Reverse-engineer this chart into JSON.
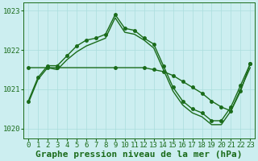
{
  "ylim": [
    1019.75,
    1023.2
  ],
  "xlim": [
    -0.5,
    23.5
  ],
  "yticks": [
    1020,
    1021,
    1022,
    1023
  ],
  "xticks": [
    0,
    1,
    2,
    3,
    4,
    5,
    6,
    7,
    8,
    9,
    10,
    11,
    12,
    13,
    14,
    15,
    16,
    17,
    18,
    19,
    20,
    21,
    22,
    23
  ],
  "bg_color": "#cceef0",
  "grid_color": "#aadddd",
  "line_color": "#1a6b1a",
  "series": [
    {
      "x": [
        0,
        1,
        2,
        3,
        4,
        5,
        6,
        7,
        8,
        9,
        10,
        11,
        12,
        13,
        14,
        15,
        16,
        17,
        18,
        19,
        20,
        21,
        22,
        23
      ],
      "y": [
        1020.7,
        1021.3,
        1021.6,
        1021.6,
        1021.85,
        1022.1,
        1022.25,
        1022.3,
        1022.4,
        1022.9,
        1022.55,
        1022.5,
        1022.3,
        1022.15,
        1021.6,
        1021.05,
        1020.7,
        1020.5,
        1020.4,
        1020.2,
        1020.2,
        1020.55,
        1021.1,
        1021.65
      ],
      "has_markers": true
    },
    {
      "x": [
        0,
        1,
        2,
        3,
        4,
        5,
        6,
        7,
        8,
        9,
        10,
        11,
        12,
        13,
        14,
        15,
        16,
        17,
        18,
        19,
        20,
        21,
        22,
        23
      ],
      "y": [
        1020.65,
        1021.25,
        1021.55,
        1021.5,
        1021.75,
        1021.95,
        1022.1,
        1022.2,
        1022.3,
        1022.82,
        1022.45,
        1022.4,
        1022.25,
        1022.05,
        1021.5,
        1020.95,
        1020.6,
        1020.4,
        1020.3,
        1020.1,
        1020.1,
        1020.45,
        1021.0,
        1021.55
      ],
      "has_markers": false
    },
    {
      "x": [
        0,
        2,
        3,
        9,
        12,
        13,
        14,
        15,
        16,
        17,
        18,
        19,
        20,
        21,
        22,
        23
      ],
      "y": [
        1021.55,
        1021.55,
        1021.55,
        1021.55,
        1021.55,
        1021.5,
        1021.45,
        1021.35,
        1021.2,
        1021.05,
        1020.9,
        1020.7,
        1020.55,
        1020.45,
        1020.95,
        1021.65
      ],
      "has_markers": true
    }
  ],
  "xlabel": "Graphe pression niveau de la mer (hPa)",
  "font_color": "#1a6b1a",
  "label_fontsize": 8,
  "tick_fontsize": 6.5,
  "linewidth": 1.0,
  "markersize": 2.5
}
